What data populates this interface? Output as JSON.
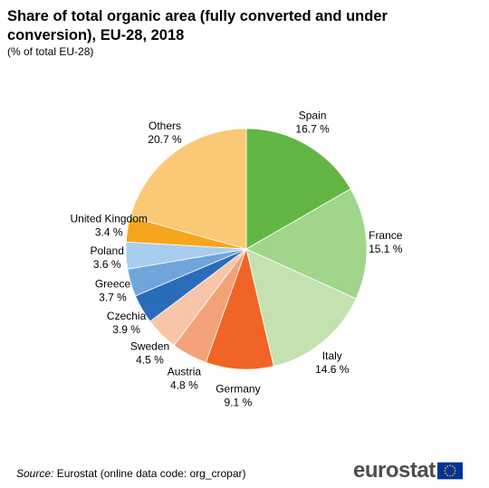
{
  "title": "Share of total organic area (fully converted and under conversion), EU-28, 2018",
  "subtitle": "(% of total EU-28)",
  "source": {
    "label": "Source:",
    "text": "Eurostat (online data code: org_cropar)"
  },
  "logo": {
    "text": "eurostat",
    "flag_icon": "eu-flag-icon"
  },
  "colors": {
    "Spain": "#62b643",
    "France": "#a0d58b",
    "Italy": "#c3e2b0",
    "Germany": "#f06425",
    "Austria": "#f4a278",
    "Sweden": "#f8c5a9",
    "Czechia": "#2a6cb8",
    "Greece": "#6ea6dc",
    "Poland": "#a8cdee",
    "United Kingdom": "#f5a61d",
    "Others": "#fbc975"
  },
  "chart_data": {
    "type": "pie",
    "title": "Share of total organic area (fully converted and under conversion), EU-28, 2018",
    "subtitle": "(% of total EU-28)",
    "unit": "%",
    "start_angle": "12 o'clock",
    "direction": "clockwise",
    "slices": [
      {
        "label": "Spain",
        "value": 16.7,
        "value_text": "16.7 %"
      },
      {
        "label": "France",
        "value": 15.1,
        "value_text": "15.1 %"
      },
      {
        "label": "Italy",
        "value": 14.6,
        "value_text": "14.6 %"
      },
      {
        "label": "Germany",
        "value": 9.1,
        "value_text": "9.1 %"
      },
      {
        "label": "Austria",
        "value": 4.8,
        "value_text": "4.8 %"
      },
      {
        "label": "Sweden",
        "value": 4.5,
        "value_text": "4.5 %"
      },
      {
        "label": "Czechia",
        "value": 3.9,
        "value_text": "3.9 %"
      },
      {
        "label": "Greece",
        "value": 3.7,
        "value_text": "3.7 %"
      },
      {
        "label": "Poland",
        "value": 3.6,
        "value_text": "3.6 %"
      },
      {
        "label": "United Kingdom",
        "value": 3.4,
        "value_text": "3.4 %"
      },
      {
        "label": "Others",
        "value": 20.7,
        "value_text": "20.7 %"
      }
    ]
  }
}
